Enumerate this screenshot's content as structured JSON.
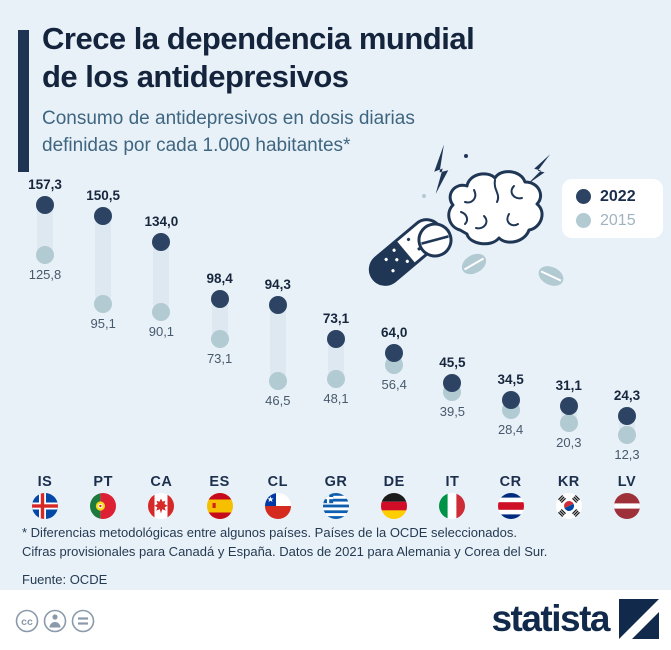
{
  "header": {
    "title_line1": "Crece la dependencia mundial",
    "title_line2": "de los antidepresivos",
    "subtitle_line1": "Consumo de antidepresivos en dosis diarias",
    "subtitle_line2": "definidas por cada 1.000 habitantes*"
  },
  "legend": {
    "year_2022": "2022",
    "year_2015": "2015"
  },
  "chart_data": {
    "type": "dumbbell",
    "title": "Crece la dependencia mundial de los antidepresivos",
    "subtitle": "Consumo de antidepresivos en dosis diarias definidas por cada 1.000 habitantes*",
    "categories": [
      "IS",
      "PT",
      "CA",
      "ES",
      "CL",
      "GR",
      "DE",
      "IT",
      "CR",
      "KR",
      "LV"
    ],
    "series": [
      {
        "name": "2022",
        "values": [
          157.3,
          150.5,
          134.0,
          98.4,
          94.3,
          73.1,
          64.0,
          45.5,
          34.5,
          31.1,
          24.3
        ]
      },
      {
        "name": "2015",
        "values": [
          125.8,
          95.1,
          90.1,
          73.1,
          46.5,
          48.1,
          56.4,
          39.5,
          28.4,
          20.3,
          12.3
        ]
      }
    ],
    "value_labels_2022": [
      "157,3",
      "150,5",
      "134,0",
      "98,4",
      "94,3",
      "73,1",
      "64,0",
      "45,5",
      "34,5",
      "31,1",
      "24,3"
    ],
    "value_labels_2015": [
      "125,8",
      "95,1",
      "90,1",
      "73,1",
      "46,5",
      "48,1",
      "56,4",
      "39,5",
      "28,4",
      "20,3",
      "12,3"
    ],
    "ylim": [
      0,
      165
    ],
    "legend_position": "top-right",
    "grid": false,
    "colors": {
      "2022": "#2d4363",
      "2015": "#b2cad2",
      "connector": "#dde8f1",
      "background": "#e9f1f8"
    }
  },
  "footer": {
    "note_line1": "* Diferencias metodológicas entre algunos países. Países de la OCDE seleccionados.",
    "note_line2": "Cifras provisionales para Canadá y España. Datos de 2021 para Alemania y Corea del Sur.",
    "source": "Fuente: OCDE"
  },
  "branding": {
    "logo_text": "statista",
    "license_icons": [
      "cc-icon",
      "attribution-icon",
      "equal-icon"
    ],
    "brand_color": "#11294a"
  }
}
